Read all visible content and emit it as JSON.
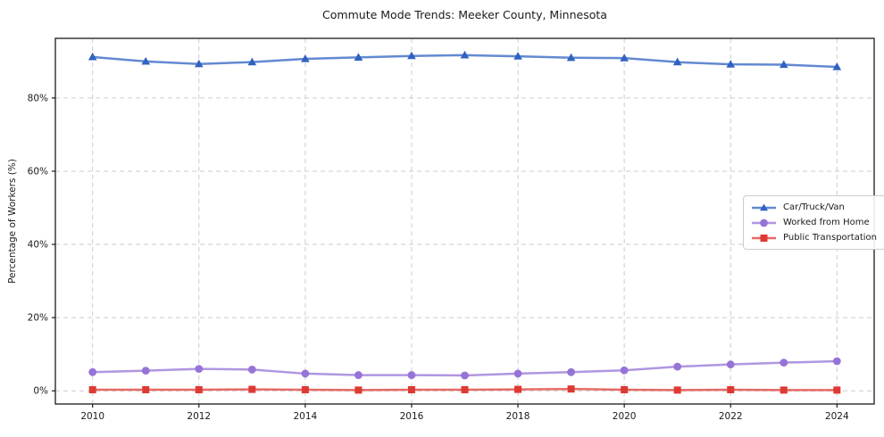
{
  "title": "Commute Mode Trends: Meeker County, Minnesota",
  "ylabel": "Percentage of Workers (%)",
  "colors": {
    "car_truck_van": "#2f62c1",
    "worked_from_home": "#9673d6",
    "public_transportation": "#de3933",
    "grid": "#cccccc",
    "spine": "#1a1a1a"
  },
  "chart_data": {
    "type": "line",
    "title": "Commute Mode Trends: Meeker County, Minnesota",
    "xlabel": "",
    "ylabel": "Percentage of Workers (%)",
    "x": [
      2010,
      2011,
      2012,
      2013,
      2014,
      2015,
      2016,
      2017,
      2018,
      2019,
      2020,
      2021,
      2022,
      2023,
      2024
    ],
    "series": [
      {
        "name": "Car/Truck/Van",
        "color": "#2f62c1",
        "marker": "triangle",
        "values": [
          91.2,
          90.0,
          89.3,
          89.8,
          90.7,
          91.1,
          91.5,
          91.7,
          91.4,
          91.0,
          90.9,
          89.8,
          89.2,
          89.1,
          88.5
        ]
      },
      {
        "name": "Worked from Home",
        "color": "#9673d6",
        "marker": "circle",
        "values": [
          5.1,
          5.5,
          6.0,
          5.8,
          4.7,
          4.3,
          4.3,
          4.2,
          4.7,
          5.1,
          5.6,
          6.6,
          7.2,
          7.7,
          8.1
        ]
      },
      {
        "name": "Public Transportation",
        "color": "#de3933",
        "marker": "square",
        "values": [
          0.3,
          0.3,
          0.3,
          0.4,
          0.3,
          0.2,
          0.3,
          0.3,
          0.4,
          0.5,
          0.3,
          0.2,
          0.3,
          0.2,
          0.2
        ]
      }
    ],
    "xticks": [
      2010,
      2012,
      2014,
      2016,
      2018,
      2020,
      2022,
      2024
    ],
    "yticks": [
      0,
      20,
      40,
      60,
      80
    ],
    "ytick_labels": [
      "0%",
      "20%",
      "40%",
      "60%",
      "80%"
    ],
    "xlim": [
      2009.3,
      2024.7
    ],
    "ylim": [
      -3.6,
      96.3
    ],
    "grid": true,
    "grid_style": "dashed",
    "legend_position": "center right"
  }
}
